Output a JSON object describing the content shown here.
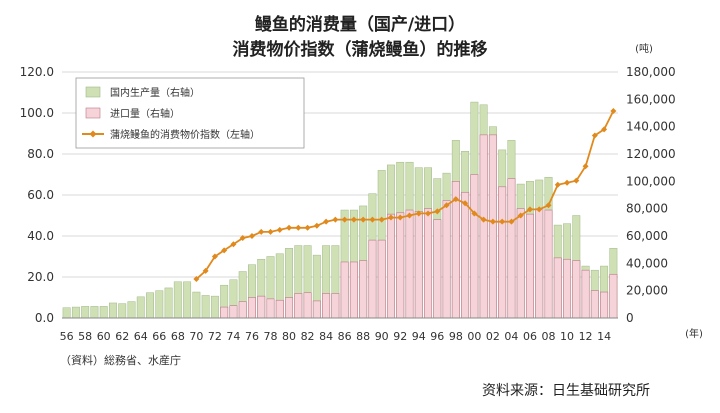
{
  "chart_data": {
    "type": "bar",
    "title": "鳗鱼的消费量（国产/进口）",
    "subtitle": "消费物价指数（蒲烧鳗鱼）的推移",
    "left_axis": {
      "ylim": [
        0,
        120
      ],
      "ticks": [
        "0.0",
        "20.0",
        "40.0",
        "60.0",
        "80.0",
        "100.0",
        "120.0"
      ]
    },
    "right_axis": {
      "unit": "(吨)",
      "ylim": [
        0,
        180000
      ],
      "ticks": [
        "0",
        "20,000",
        "40,000",
        "60,000",
        "80,000",
        "100,000",
        "120,000",
        "140,000",
        "160,000",
        "180,000"
      ]
    },
    "x_unit": "(年)",
    "x_tick_labels": [
      "56",
      "58",
      "60",
      "62",
      "64",
      "66",
      "68",
      "70",
      "72",
      "74",
      "76",
      "78",
      "80",
      "82",
      "84",
      "86",
      "88",
      "90",
      "92",
      "94",
      "96",
      "98",
      "00",
      "02",
      "04",
      "06",
      "08",
      "10",
      "12",
      "14"
    ],
    "years": [
      1956,
      1957,
      1958,
      1959,
      1960,
      1961,
      1962,
      1963,
      1964,
      1965,
      1966,
      1967,
      1968,
      1969,
      1970,
      1971,
      1972,
      1973,
      1974,
      1975,
      1976,
      1977,
      1978,
      1979,
      1980,
      1981,
      1982,
      1983,
      1984,
      1985,
      1986,
      1987,
      1988,
      1989,
      1990,
      1991,
      1992,
      1993,
      1994,
      1995,
      1996,
      1997,
      1998,
      1999,
      2000,
      2001,
      2002,
      2003,
      2004,
      2005,
      2006,
      2007,
      2008,
      2009,
      2010,
      2011,
      2012,
      2013,
      2014,
      2015
    ],
    "legend": [
      "国内生产量（右轴）",
      "进口量（右轴）",
      "蒲烧鳗鱼的消费物价指数（左轴）"
    ],
    "series": [
      {
        "name": "国内生产量（右轴）",
        "axis": "right",
        "color": "#cfe0b4",
        "values": [
          7500,
          8000,
          8500,
          8500,
          8500,
          11000,
          10500,
          12000,
          15500,
          18500,
          20000,
          22000,
          26500,
          26500,
          19000,
          16500,
          16000,
          24000,
          28000,
          34000,
          39000,
          43000,
          45000,
          47000,
          51000,
          53000,
          53000,
          46000,
          53000,
          53000,
          79000,
          79000,
          82000,
          91000,
          108000,
          112000,
          114000,
          114000,
          110000,
          110000,
          102000,
          106000,
          130000,
          122000,
          158000,
          156000,
          140000,
          123000,
          130000,
          98000,
          100000,
          101000,
          103000,
          68000,
          69000,
          75000,
          38000,
          35000,
          38000,
          51000
        ]
      },
      {
        "name": "进口量（右轴）",
        "axis": "right",
        "color": "#f6d3d8",
        "values": [
          0,
          0,
          0,
          0,
          0,
          0,
          0,
          0,
          0,
          0,
          0,
          0,
          0,
          0,
          0,
          0,
          0,
          8000,
          9000,
          12000,
          15000,
          16000,
          14000,
          13000,
          15000,
          18000,
          18500,
          12500,
          18000,
          18000,
          41000,
          41000,
          42000,
          57000,
          57000,
          76000,
          77000,
          79000,
          78000,
          80000,
          72000,
          86000,
          100000,
          92000,
          105000,
          134000,
          134000,
          96000,
          102000,
          80000,
          76000,
          80000,
          79000,
          44000,
          43000,
          42000,
          35000,
          20000,
          19000,
          32000
        ]
      },
      {
        "name": "蒲烧鳗鱼的消费物价指数（左轴）",
        "axis": "left",
        "color": "#e08a1e",
        "values": [
          null,
          null,
          null,
          null,
          null,
          null,
          null,
          null,
          null,
          null,
          null,
          null,
          null,
          null,
          19,
          23,
          30,
          33,
          36,
          39,
          40,
          42,
          42,
          43,
          44,
          44,
          44,
          45,
          47,
          48,
          48,
          48,
          48,
          48,
          48,
          49,
          49,
          50,
          51,
          51,
          52,
          55,
          58,
          56,
          51,
          48,
          47,
          47,
          47,
          50,
          53,
          53,
          55,
          65,
          66,
          67,
          74,
          89,
          92,
          101
        ]
      }
    ]
  },
  "footnote": "（資料）総務省、水産庁",
  "source": "资料来源：日生基础研究所"
}
